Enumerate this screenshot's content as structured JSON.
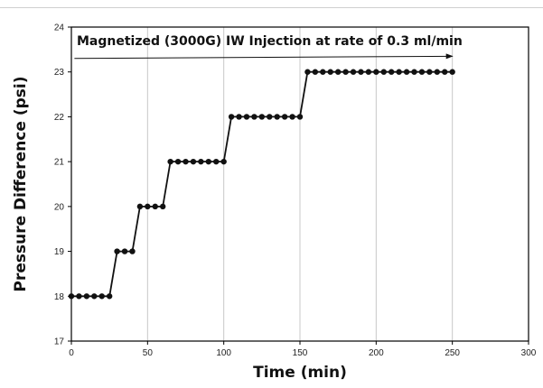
{
  "chart_data": {
    "type": "line",
    "title": "Magnetized (3000G) IW Injection at rate of 0.3 ml/min",
    "xlabel": "Time (min)",
    "ylabel": "Pressure Difference (psi)",
    "xlim": [
      0,
      300
    ],
    "ylim": [
      17,
      24
    ],
    "xticks": [
      "0",
      "50",
      "100",
      "150",
      "200",
      "250",
      "300"
    ],
    "yticks": [
      "17",
      "18",
      "19",
      "20",
      "21",
      "22",
      "23",
      "24"
    ],
    "grid": "vertical",
    "annotation": "arrow pointing right along the top of the plot",
    "series": [
      {
        "marker": "circle",
        "color": "#111111",
        "x": [
          0,
          5,
          10,
          15,
          20,
          25,
          30,
          35,
          40,
          45,
          50,
          55,
          60,
          65,
          70,
          75,
          80,
          85,
          90,
          95,
          100,
          105,
          110,
          115,
          120,
          125,
          130,
          135,
          140,
          145,
          150,
          155,
          160,
          165,
          170,
          175,
          180,
          185,
          190,
          195,
          200,
          205,
          210,
          215,
          220,
          225,
          230,
          235,
          240,
          245,
          250
        ],
        "y": [
          18,
          18,
          18,
          18,
          18,
          18,
          19,
          19,
          19,
          20,
          20,
          20,
          20,
          21,
          21,
          21,
          21,
          21,
          21,
          21,
          21,
          22,
          22,
          22,
          22,
          22,
          22,
          22,
          22,
          22,
          22,
          23,
          23,
          23,
          23,
          23,
          23,
          23,
          23,
          23,
          23,
          23,
          23,
          23,
          23,
          23,
          23,
          23,
          23,
          23,
          23
        ]
      }
    ]
  }
}
